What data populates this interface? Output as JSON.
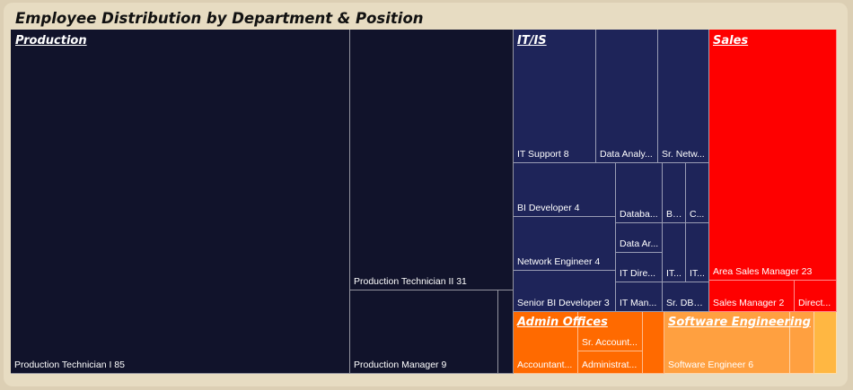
{
  "title": "Employee Distribution by Department & Position",
  "chart_data": {
    "type": "treemap",
    "title": "Employee Distribution by Department & Position",
    "groups": [
      {
        "name": "Production",
        "color": "#11132b",
        "items": [
          {
            "label": "Production Technician I 85",
            "name": "Production Technician I",
            "value": 85
          },
          {
            "label": "Production Technician II 31",
            "name": "Production Technician II",
            "value": 31
          },
          {
            "label": "Production Manager 9",
            "name": "Production Manager",
            "value": 9
          },
          {
            "label": "",
            "name": "",
            "value": 1
          }
        ]
      },
      {
        "name": "IT/IS",
        "color": "#1e2459",
        "items": [
          {
            "label": "IT Support 8",
            "name": "IT Support",
            "value": 8
          },
          {
            "label": "Data Analy...",
            "name": "Data Analyst",
            "value": 6
          },
          {
            "label": "Sr. Netw...",
            "name": "Sr. Network Engineer",
            "value": 5
          },
          {
            "label": "BI Developer 4",
            "name": "BI Developer",
            "value": 4
          },
          {
            "label": "Network Engineer 4",
            "name": "Network Engineer",
            "value": 4
          },
          {
            "label": "Senior BI Developer 3",
            "name": "Senior BI Developer",
            "value": 3
          },
          {
            "label": "Databa...",
            "name": "Database Administrator",
            "value": 3
          },
          {
            "label": "Data Ar...",
            "name": "Data Architect",
            "value": 1
          },
          {
            "label": "IT Dire...",
            "name": "IT Director",
            "value": 1
          },
          {
            "label": "IT Man...",
            "name": "IT Manager",
            "value": 1
          },
          {
            "label": "BI...",
            "name": "BI Director",
            "value": 1
          },
          {
            "label": "C...",
            "name": "CIO",
            "value": 1
          },
          {
            "label": "IT...",
            "name": "IT Manager - Infra",
            "value": 1
          },
          {
            "label": "IT...",
            "name": "IT Manager - DB",
            "value": 1
          },
          {
            "label": "Sr. DBA...",
            "name": "Sr. DBA",
            "value": 2
          }
        ]
      },
      {
        "name": "Sales",
        "color": "#fe0000",
        "items": [
          {
            "label": "Area Sales Manager 23",
            "name": "Area Sales Manager",
            "value": 23
          },
          {
            "label": "Sales Manager 2",
            "name": "Sales Manager",
            "value": 2
          },
          {
            "label": "Direct...",
            "name": "Director of Sales",
            "value": 1
          }
        ]
      },
      {
        "name": "Admin Offices",
        "color": "#ff6a00",
        "items": [
          {
            "label": "Accountant...",
            "name": "Accountant",
            "value": 3
          },
          {
            "label": "Sr. Account...",
            "name": "Sr. Accountant",
            "value": 2
          },
          {
            "label": "Administrat...",
            "name": "Administrative Assistant",
            "value": 2
          },
          {
            "label": "",
            "name": "",
            "value": 1
          },
          {
            "label": "",
            "name": "",
            "value": 1
          }
        ]
      },
      {
        "name": "Software Engineering",
        "color": "#ffa040",
        "items": [
          {
            "label": "Software Engineer 6",
            "name": "Software Engineer",
            "value": 6
          },
          {
            "label": "",
            "name": "",
            "value": 1
          },
          {
            "label": "",
            "name": "",
            "value": 1,
            "color": "#ffb742"
          }
        ]
      }
    ]
  }
}
